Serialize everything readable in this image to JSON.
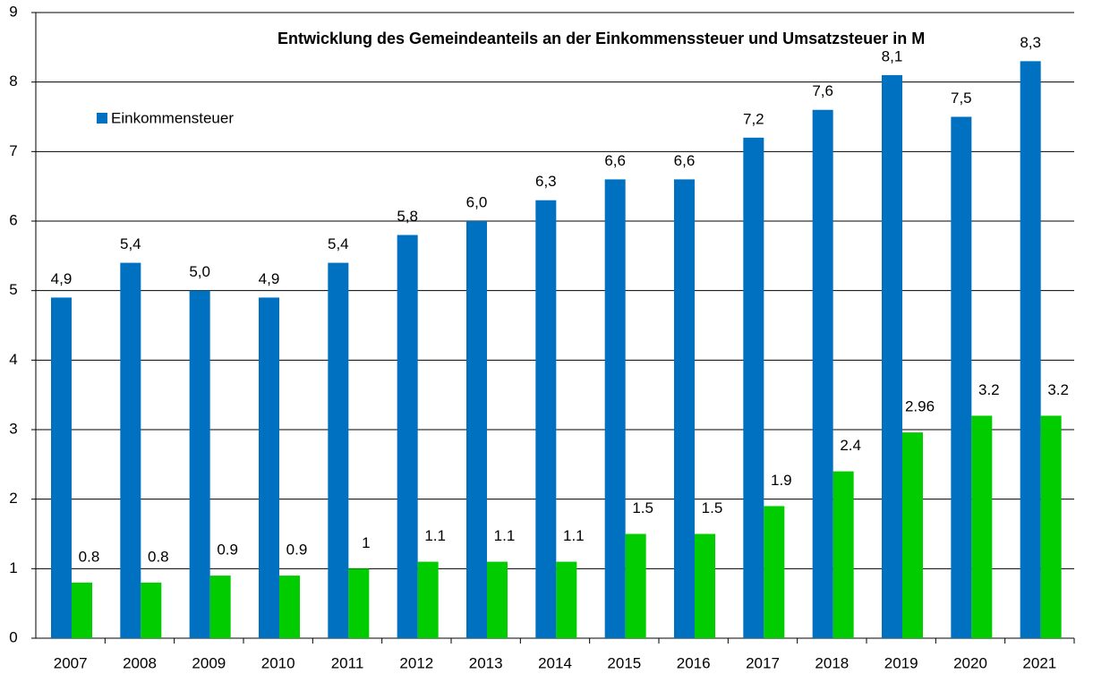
{
  "chart_data": {
    "type": "bar",
    "title": "Entwicklung des Gemeindeanteils an der Einkommenssteuer und Umsatzsteuer  in M",
    "categories": [
      "2007",
      "2008",
      "2009",
      "2010",
      "2011",
      "2012",
      "2013",
      "2014",
      "2015",
      "2016",
      "2017",
      "2018",
      "2019",
      "2020",
      "2021"
    ],
    "series": [
      {
        "name": "Einkommensteuer",
        "color": "#0070c0",
        "values": [
          4.9,
          5.4,
          5.0,
          4.9,
          5.4,
          5.8,
          6.0,
          6.3,
          6.6,
          6.6,
          7.2,
          7.6,
          8.1,
          7.5,
          8.3
        ],
        "value_labels": [
          "4,9",
          "5,4",
          "5,0",
          "4,9",
          "5,4",
          "5,8",
          "6,0",
          "6,3",
          "6,6",
          "6,6",
          "7,2",
          "7,6",
          "8,1",
          "7,5",
          "8,3"
        ]
      },
      {
        "color": "#00cc00",
        "values": [
          0.8,
          0.8,
          0.9,
          0.9,
          1,
          1.1,
          1.1,
          1.1,
          1.5,
          1.5,
          1.9,
          2.4,
          2.96,
          3.2,
          3.2
        ]
      }
    ],
    "ylim": [
      0,
      9
    ],
    "yticks": [
      0,
      1,
      2,
      3,
      4,
      5,
      6,
      7,
      8,
      9
    ],
    "grid": true,
    "legend": "top-left"
  }
}
